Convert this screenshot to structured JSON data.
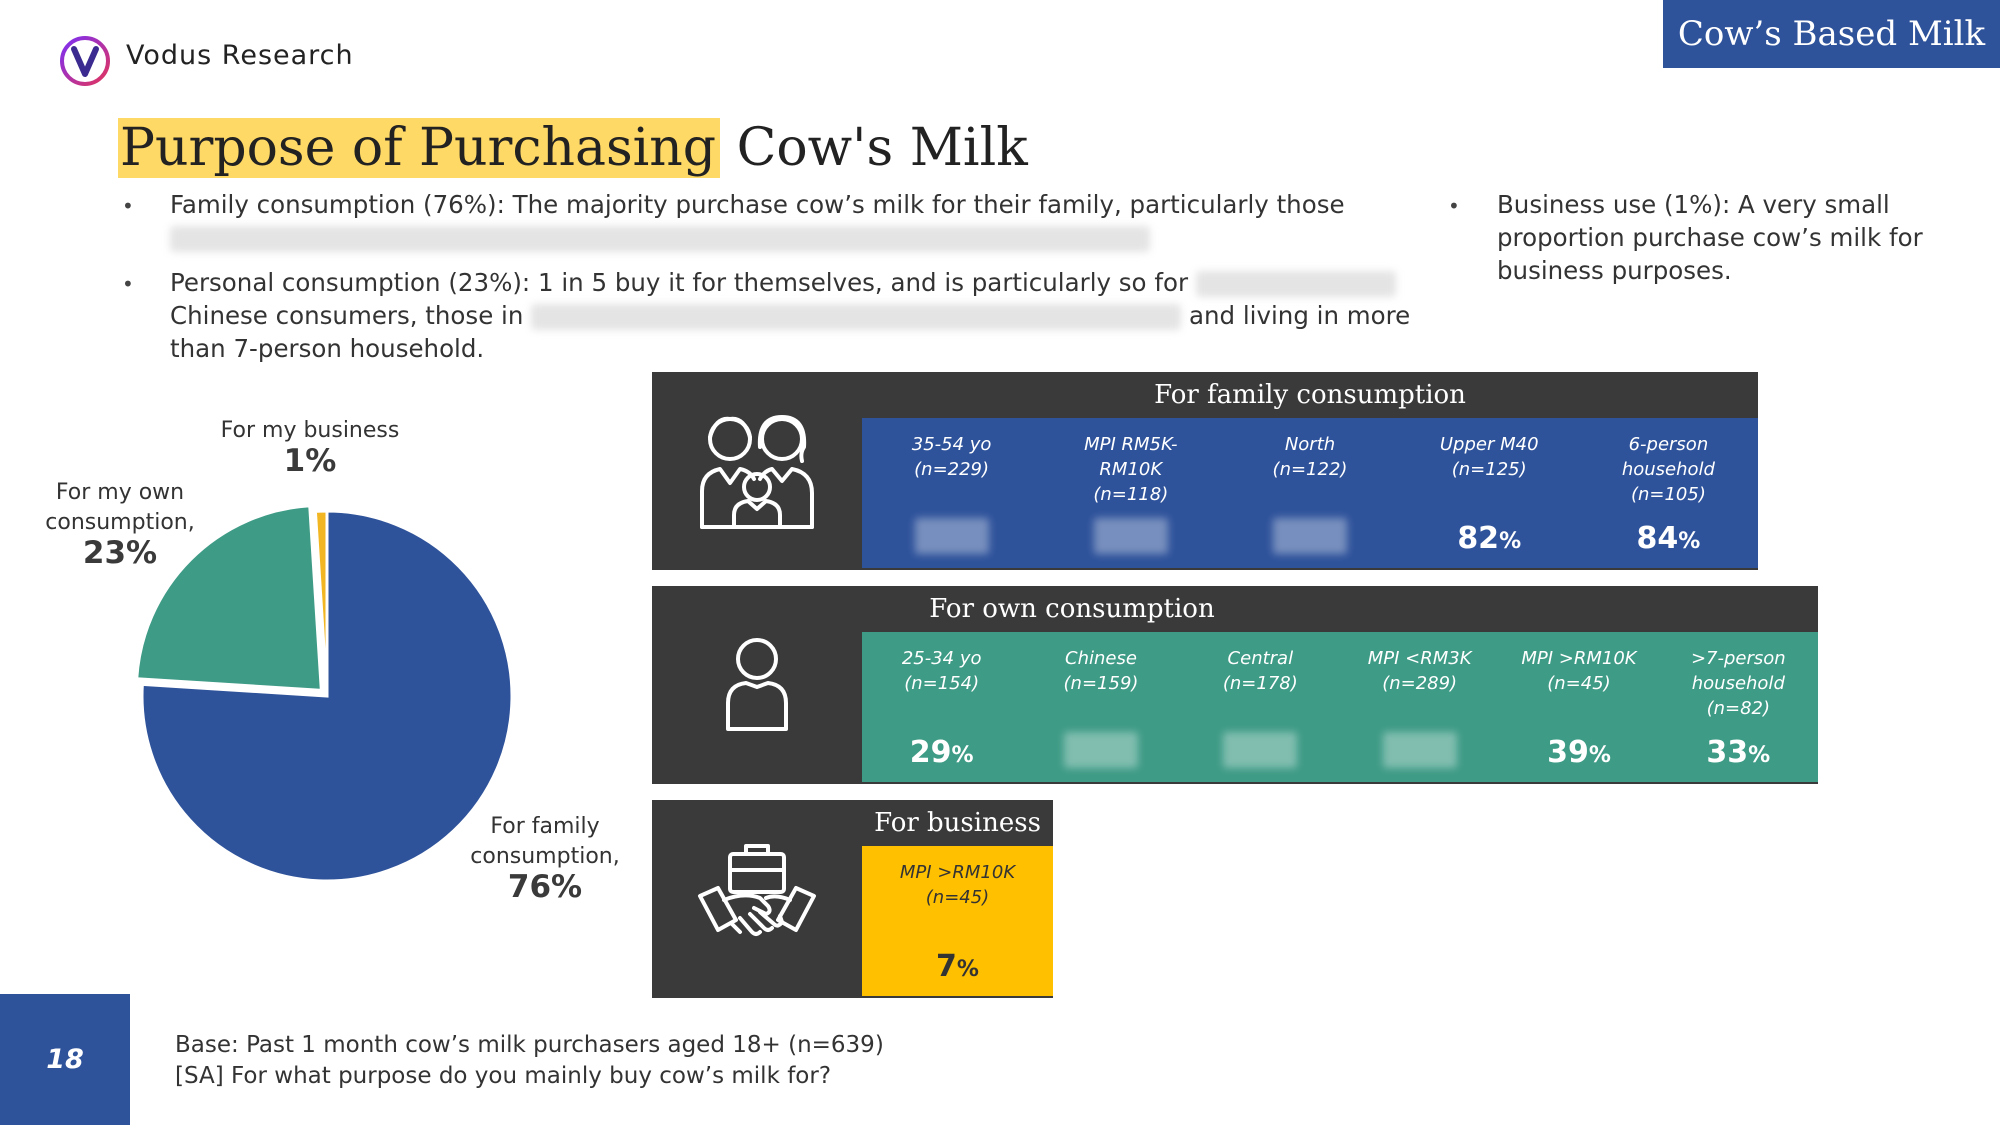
{
  "header": {
    "brand": "Vodus Research",
    "category": "Cow’s Based Milk",
    "title_highlight": "Purpose of Purchasing",
    "title_rest": " Cow's Milk"
  },
  "bullets": {
    "b1_text": "Family consumption (76%): The majority purchase cow’s milk for their family, particularly those",
    "b2_text_1": "Personal consumption (23%): 1 in 5 buy it for themselves, and is particularly so for",
    "b2_text_2": "Chinese consumers, those in",
    "b2_text_3": "and living in more",
    "b2_text_4": "than 7-person household.",
    "b3_text": "Business use (1%): A very small proportion purchase cow’s milk for business purposes."
  },
  "chart_data": {
    "type": "pie",
    "slices": [
      {
        "label_1": "For family",
        "label_2": "consumption,",
        "value": 76,
        "value_label": "76%",
        "color": "#2F539B"
      },
      {
        "label_1": "For my own",
        "label_2": "consumption,",
        "value": 23,
        "value_label": "23%",
        "color": "#3E9B86"
      },
      {
        "label_1": "For my business",
        "label_2": "",
        "value": 1,
        "value_label": "1%",
        "color": "#F2B623"
      }
    ]
  },
  "panels": {
    "family": {
      "title": "For family consumption",
      "color": "#2F539B",
      "cells": [
        {
          "l1": "35-54 yo",
          "l2": "(n=229)",
          "l3": "",
          "value": null,
          "pct": ""
        },
        {
          "l1": "MPI RM5K-",
          "l2": "RM10K",
          "l3": "(n=118)",
          "value": null,
          "pct": ""
        },
        {
          "l1": "North",
          "l2": "(n=122)",
          "l3": "",
          "value": null,
          "pct": ""
        },
        {
          "l1": "Upper M40",
          "l2": "(n=125)",
          "l3": "",
          "value": "82",
          "pct": "%"
        },
        {
          "l1": "6-person",
          "l2": "household",
          "l3": "(n=105)",
          "value": "84",
          "pct": "%"
        }
      ]
    },
    "own": {
      "title": "For own consumption",
      "color": "#3E9B86",
      "cells": [
        {
          "l1": "25-34 yo",
          "l2": "(n=154)",
          "l3": "",
          "value": "29",
          "pct": "%"
        },
        {
          "l1": "Chinese",
          "l2": "(n=159)",
          "l3": "",
          "value": null,
          "pct": ""
        },
        {
          "l1": "Central",
          "l2": "(n=178)",
          "l3": "",
          "value": null,
          "pct": ""
        },
        {
          "l1": "MPI <RM3K",
          "l2": "(n=289)",
          "l3": "",
          "value": null,
          "pct": ""
        },
        {
          "l1": "MPI >RM10K",
          "l2": "(n=45)",
          "l3": "",
          "value": "39",
          "pct": "%"
        },
        {
          "l1": ">7-person",
          "l2": "household",
          "l3": "(n=82)",
          "value": "33",
          "pct": "%"
        }
      ]
    },
    "business": {
      "title": "For business",
      "color": "#FFC000",
      "cells": [
        {
          "l1": "MPI >RM10K",
          "l2": "(n=45)",
          "l3": "",
          "value": "7",
          "pct": "%"
        }
      ]
    }
  },
  "icons": {
    "family": "family-icon",
    "person": "person-icon",
    "business": "handshake-briefcase-icon",
    "logo": "vodus-logo-icon"
  },
  "footer": {
    "page_number": "18",
    "base_1": "Base: Past 1 month cow’s milk purchasers aged 18+ (n=639)",
    "base_2": "[SA] For what purpose do you mainly buy cow’s milk for?"
  }
}
